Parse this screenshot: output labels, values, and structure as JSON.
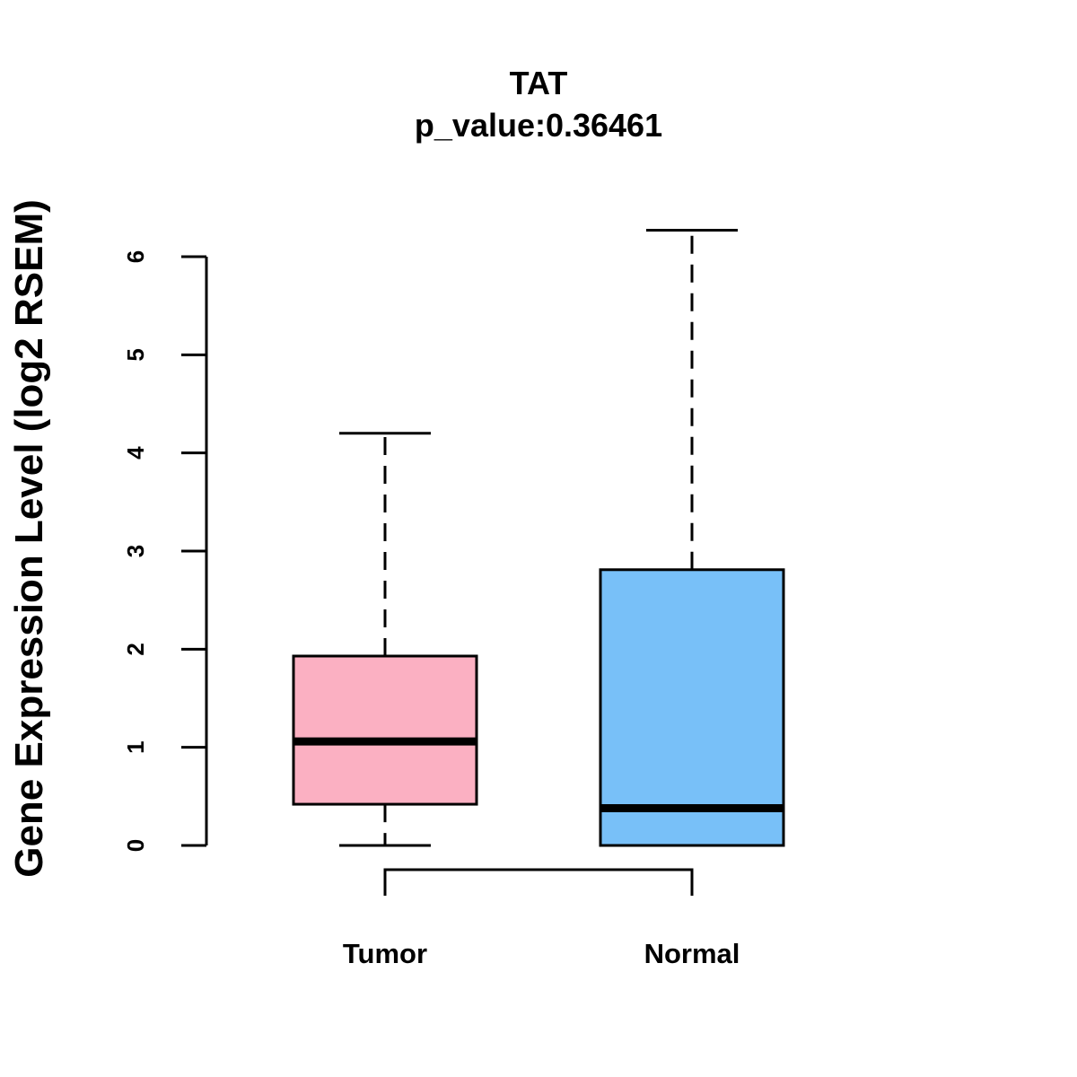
{
  "chart_data": {
    "type": "boxplot",
    "title": "TAT",
    "subtitle": "p_value:0.36461",
    "ylabel": "Gene Expression Level (log2 RSEM)",
    "xlabel": "",
    "ylim": [
      0,
      6
    ],
    "yticks": [
      0,
      1,
      2,
      3,
      4,
      5,
      6
    ],
    "categories": [
      "Tumor",
      "Normal"
    ],
    "series": [
      {
        "name": "Tumor",
        "color": "#FBB0C2",
        "min": 0.0,
        "q1": 0.42,
        "median": 1.06,
        "q3": 1.93,
        "max": 4.2
      },
      {
        "name": "Normal",
        "color": "#78C0F8",
        "min": 0.0,
        "q1": 0.0,
        "median": 0.38,
        "q3": 2.81,
        "max": 6.27
      }
    ],
    "comparison_bracket": [
      "Tumor",
      "Normal"
    ],
    "grid": false,
    "legend": "none"
  }
}
